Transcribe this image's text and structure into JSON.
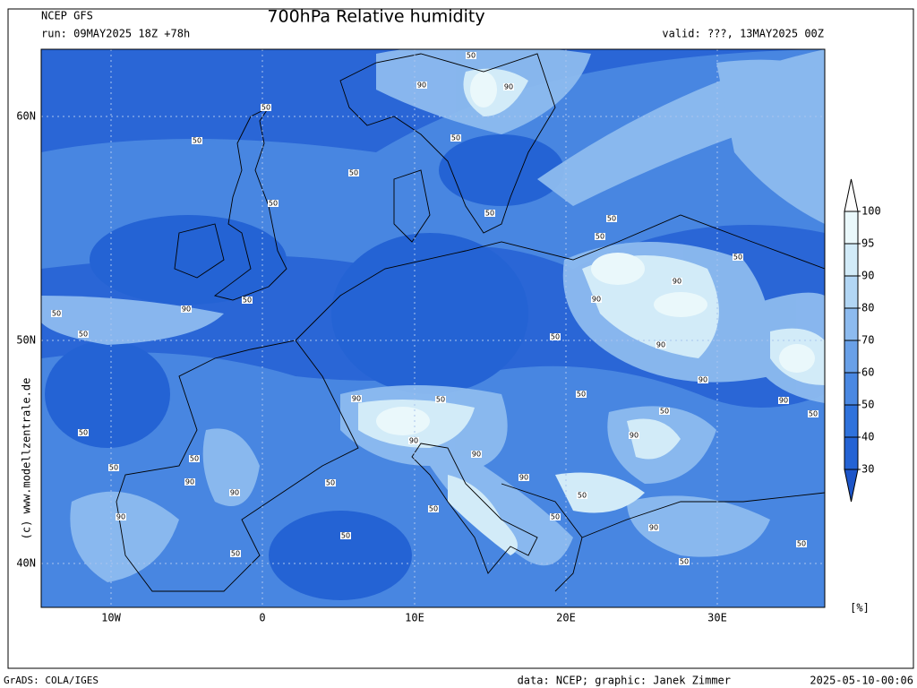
{
  "header": {
    "model": "NCEP GFS",
    "run": "run: 09MAY2025 18Z +78h",
    "title": "700hPa Relative humidity",
    "valid": "valid: ???, 13MAY2025 00Z"
  },
  "map": {
    "lat_labels": [
      "60N",
      "50N",
      "40N"
    ],
    "lon_labels": [
      "10W",
      "0",
      "10E",
      "20E",
      "30E"
    ],
    "contour_labels": [
      50,
      90,
      90,
      50,
      50,
      50,
      50,
      50,
      50,
      50,
      50,
      50,
      90,
      90,
      50,
      90,
      50,
      50,
      50,
      90,
      90,
      50,
      90,
      50,
      90,
      50,
      50,
      50,
      90,
      90,
      50,
      50,
      90,
      90,
      50,
      90,
      90,
      50,
      50,
      50,
      90,
      90,
      50,
      50,
      50,
      50
    ]
  },
  "colorbar": {
    "levels": [
      30,
      40,
      50,
      60,
      70,
      80,
      90,
      95,
      100
    ],
    "colors": [
      "#1d55c8",
      "#2463d4",
      "#2f72dc",
      "#4a88e2",
      "#69a0e8",
      "#8dbbef",
      "#b2d6f4",
      "#d2ebf8",
      "#eaf8fb",
      "#ffffff"
    ],
    "unit": "[%]"
  },
  "credit": "(c) www.modellzentrale.de",
  "footer": {
    "software": "GrADS: COLA/IGES",
    "source": "data: NCEP; graphic: Janek Zimmer",
    "timestamp": "2025-05-10-00:06"
  }
}
